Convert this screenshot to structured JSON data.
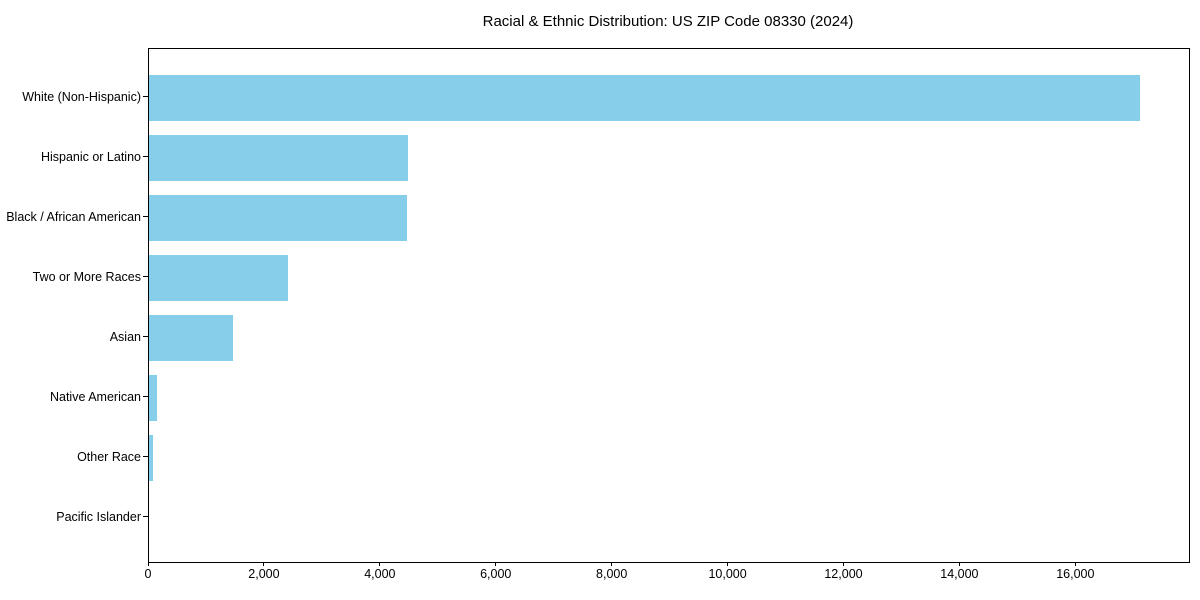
{
  "chart_data": {
    "type": "bar",
    "orientation": "horizontal",
    "title": "Racial & Ethnic Distribution: US ZIP Code 08330 (2024)",
    "categories": [
      "White (Non-Hispanic)",
      "Hispanic or Latino",
      "Black / African American",
      "Two or More Races",
      "Asian",
      "Native American",
      "Other Race",
      "Pacific Islander"
    ],
    "values": [
      17090,
      4470,
      4445,
      2390,
      1450,
      130,
      75,
      0
    ],
    "xlabel": "",
    "ylabel": "",
    "xlim": [
      0,
      17944
    ],
    "xticks": [
      0,
      2000,
      4000,
      6000,
      8000,
      10000,
      12000,
      14000,
      16000
    ],
    "xtick_labels": [
      "0",
      "2,000",
      "4,000",
      "6,000",
      "8,000",
      "10,000",
      "12,000",
      "14,000",
      "16,000"
    ],
    "grid": false,
    "legend_position": "none",
    "colors": {
      "bar": "#87CEEB",
      "spine": "#000000",
      "text": "#000000",
      "background": "#ffffff"
    }
  }
}
